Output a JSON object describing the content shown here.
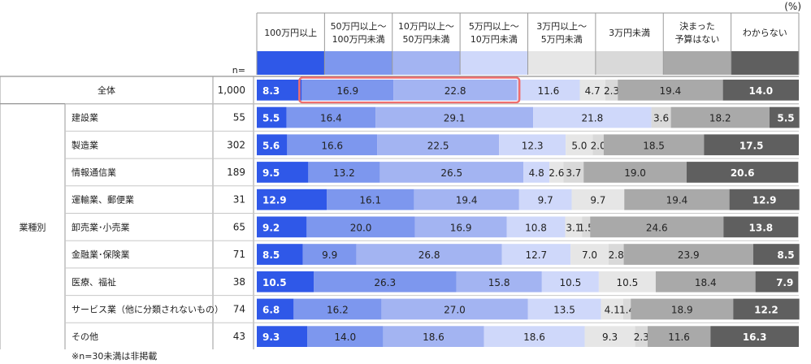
{
  "unit_label": "(%)",
  "n_label": "n=",
  "footnote": "※n=30未満は非掲載",
  "colors": [
    "#2f58e8",
    "#7d97ee",
    "#a3b4f2",
    "#cfd8fa",
    "#e6e6e6",
    "#d9d9d9",
    "#a9a9a9",
    "#5f5f5f"
  ],
  "chart_data": {
    "type": "bar",
    "stacked": true,
    "orientation": "horizontal",
    "percent": true,
    "categories": [
      "100万円以上",
      "50万円以上～\n100万円未満",
      "10万円以上～\n50万円未満",
      "5万円以上～\n10万円未満",
      "3万円以上～\n5万円未満",
      "3万円未満",
      "決まった\n予算はない",
      "わからない"
    ],
    "rows": [
      {
        "label": "全体",
        "n": "1,000",
        "values": [
          8.3,
          16.9,
          22.8,
          11.6,
          4.7,
          2.3,
          19.4,
          14.0
        ],
        "highlight": [
          1,
          2
        ]
      },
      {
        "group": "業種別",
        "label": "建設業",
        "n": "55",
        "values": [
          5.5,
          16.4,
          29.1,
          21.8,
          0.0,
          3.6,
          18.2,
          5.5
        ]
      },
      {
        "group": "業種別",
        "label": "製造業",
        "n": "302",
        "values": [
          5.6,
          16.6,
          22.5,
          12.3,
          5.0,
          2.0,
          18.5,
          17.5
        ]
      },
      {
        "group": "業種別",
        "label": "情報通信業",
        "n": "189",
        "values": [
          9.5,
          13.2,
          26.5,
          4.8,
          2.6,
          3.7,
          19.0,
          20.6
        ]
      },
      {
        "group": "業種別",
        "label": "運輸業、郵便業",
        "n": "31",
        "values": [
          12.9,
          16.1,
          19.4,
          9.7,
          9.7,
          0.0,
          19.4,
          12.9
        ]
      },
      {
        "group": "業種別",
        "label": "卸売業･小売業",
        "n": "65",
        "values": [
          9.2,
          20.0,
          16.9,
          10.8,
          3.1,
          1.5,
          24.6,
          13.8
        ]
      },
      {
        "group": "業種別",
        "label": "金融業･保険業",
        "n": "71",
        "values": [
          8.5,
          9.9,
          26.8,
          12.7,
          7.0,
          2.8,
          23.9,
          8.5
        ]
      },
      {
        "group": "業種別",
        "label": "医療、福祉",
        "n": "38",
        "values": [
          10.5,
          26.3,
          15.8,
          10.5,
          10.5,
          0.0,
          18.4,
          7.9
        ]
      },
      {
        "group": "業種別",
        "label": "サービス業（他に分類されないもの）",
        "n": "74",
        "values": [
          6.8,
          16.2,
          27.0,
          13.5,
          4.1,
          1.4,
          18.9,
          12.2
        ]
      },
      {
        "group": "業種別",
        "label": "その他",
        "n": "43",
        "values": [
          9.3,
          14.0,
          18.6,
          18.6,
          9.3,
          2.3,
          11.6,
          16.3
        ]
      }
    ],
    "group_label": "業種別",
    "xlim": [
      0,
      100
    ]
  }
}
